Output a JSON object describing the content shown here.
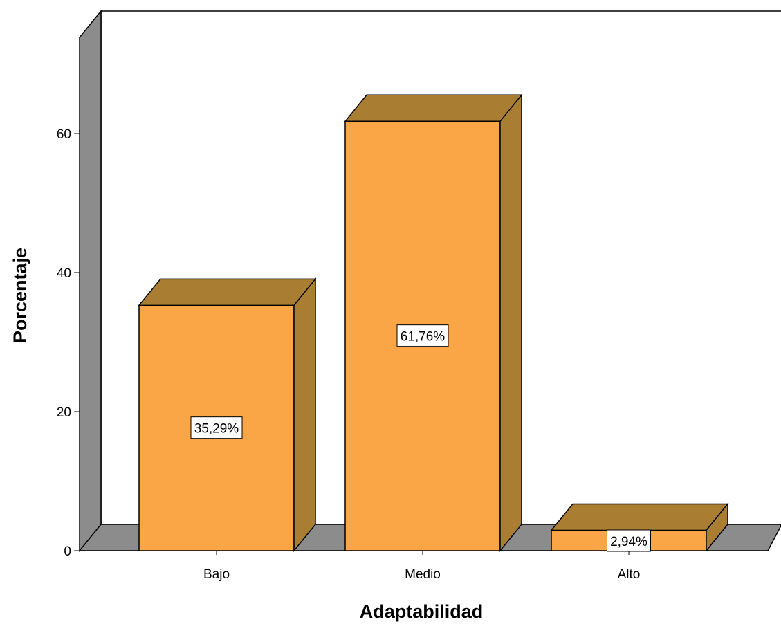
{
  "chart_data": {
    "type": "bar",
    "style": "3d",
    "categories": [
      "Bajo",
      "Medio",
      "Alto"
    ],
    "values": [
      35.29,
      61.76,
      2.94
    ],
    "data_labels": [
      "35,29%",
      "61,76%",
      "2,94%"
    ],
    "title": "",
    "xlabel": "Adaptabilidad",
    "ylabel": "Porcentaje",
    "ylim": [
      0,
      75
    ],
    "yticks": [
      "0",
      "20",
      "40",
      "60"
    ],
    "ytick_values": [
      0,
      20,
      40,
      60
    ],
    "grid": false,
    "legend": "none",
    "colors": {
      "bar_front": "#fba646",
      "bar_top": "#a97e33",
      "bar_side": "#a97e33",
      "floor": "#8c8c8c",
      "back_wall": "#ffffff",
      "left_wall": "#8c8c8c",
      "outline": "#000000"
    }
  }
}
